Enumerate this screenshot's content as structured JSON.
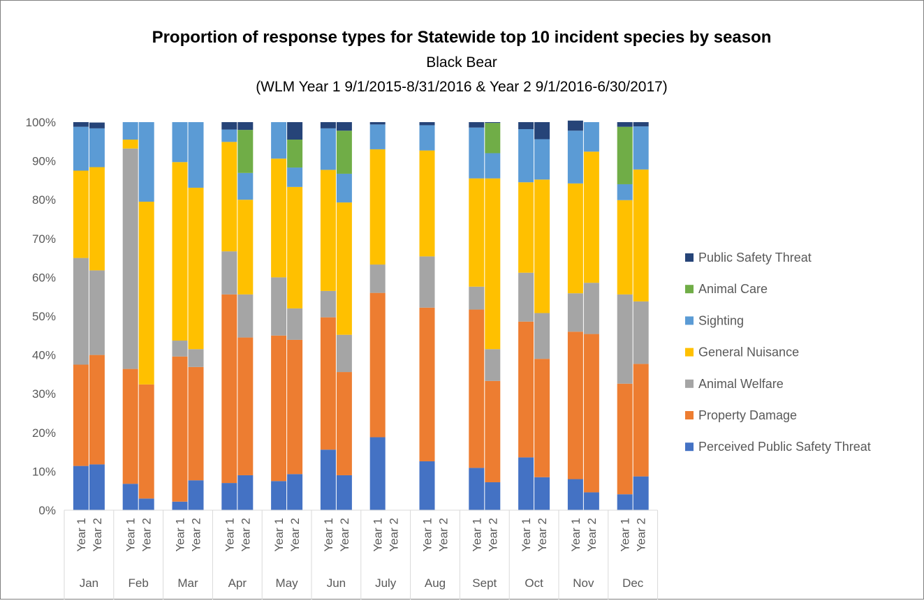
{
  "chart_data": {
    "type": "bar",
    "stacked": true,
    "normalized": true,
    "title": "Proportion of response types for Statewide top 10 incident species by season",
    "subtitle": "Black Bear",
    "subtitle2": "(WLM Year 1 9/1/2015-8/31/2016 & Year 2 9/1/2016-6/30/2017)",
    "xlabel": "",
    "ylabel": "",
    "ylim": [
      0,
      100
    ],
    "yticks": [
      "0%",
      "10%",
      "20%",
      "30%",
      "40%",
      "50%",
      "60%",
      "70%",
      "80%",
      "90%",
      "100%"
    ],
    "legend_position": "right",
    "grid": false,
    "groups": [
      "Jan",
      "Feb",
      "Mar",
      "Apr",
      "May",
      "Jun",
      "July",
      "Aug",
      "Sept",
      "Oct",
      "Nov",
      "Dec"
    ],
    "subcategories": [
      "Year 1",
      "Year 2"
    ],
    "series": [
      {
        "name": "Perceived Public Safety Threat",
        "color": "#4472C4",
        "values": [
          [
            11.4,
            11.8
          ],
          [
            6.8,
            3.0
          ],
          [
            2.2,
            7.7
          ],
          [
            7.0,
            9.0
          ],
          [
            7.5,
            9.3
          ],
          [
            15.6,
            9.0
          ],
          [
            18.8,
            null
          ],
          [
            12.6,
            null
          ],
          [
            10.9,
            7.2
          ],
          [
            13.6,
            8.5
          ],
          [
            8.0,
            4.6
          ],
          [
            4.1,
            8.7
          ]
        ]
      },
      {
        "name": "Property Damage",
        "color": "#ED7D31",
        "values": [
          [
            26.1,
            28.2
          ],
          [
            29.6,
            29.4
          ],
          [
            37.4,
            29.2
          ],
          [
            48.6,
            35.5
          ],
          [
            37.5,
            34.6
          ],
          [
            34.1,
            26.6
          ],
          [
            37.2,
            null
          ],
          [
            39.6,
            null
          ],
          [
            40.8,
            26.1
          ],
          [
            35.0,
            30.5
          ],
          [
            38.0,
            40.8
          ],
          [
            28.5,
            29.0
          ]
        ]
      },
      {
        "name": "Animal Welfare",
        "color": "#A5A5A5",
        "values": [
          [
            27.5,
            21.8
          ],
          [
            56.8,
            0.0
          ],
          [
            4.1,
            4.6
          ],
          [
            11.1,
            11.1
          ],
          [
            15.0,
            8.1
          ],
          [
            6.8,
            9.6
          ],
          [
            7.3,
            null
          ],
          [
            13.2,
            null
          ],
          [
            5.9,
            8.2
          ],
          [
            12.6,
            11.8
          ],
          [
            9.9,
            13.2
          ],
          [
            23.0,
            16.1
          ]
        ]
      },
      {
        "name": "General Nuisance",
        "color": "#FFC000",
        "values": [
          [
            22.5,
            26.6
          ],
          [
            2.3,
            47.1
          ],
          [
            46.0,
            41.6
          ],
          [
            28.2,
            24.4
          ],
          [
            30.6,
            31.3
          ],
          [
            31.2,
            34.1
          ],
          [
            29.7,
            null
          ],
          [
            27.3,
            null
          ],
          [
            27.9,
            44.0
          ],
          [
            23.3,
            34.4
          ],
          [
            28.3,
            33.8
          ],
          [
            24.3,
            34.0
          ]
        ]
      },
      {
        "name": "Sighting",
        "color": "#5B9BD5",
        "values": [
          [
            11.3,
            10.0
          ],
          [
            4.5,
            20.5
          ],
          [
            10.3,
            16.9
          ],
          [
            3.2,
            6.9
          ],
          [
            9.4,
            5.0
          ],
          [
            10.7,
            7.4
          ],
          [
            6.4,
            null
          ],
          [
            6.5,
            null
          ],
          [
            13.1,
            6.5
          ],
          [
            13.7,
            10.4
          ],
          [
            13.6,
            7.6
          ],
          [
            4.1,
            11.1
          ]
        ]
      },
      {
        "name": "Animal Care",
        "color": "#70AD47",
        "values": [
          [
            0,
            0
          ],
          [
            0,
            0
          ],
          [
            0,
            0
          ],
          [
            0,
            11.1
          ],
          [
            0,
            7.2
          ],
          [
            0,
            11.1
          ],
          [
            0,
            null
          ],
          [
            0,
            null
          ],
          [
            0,
            7.8
          ],
          [
            0,
            0
          ],
          [
            0,
            0
          ],
          [
            14.8,
            0
          ]
        ]
      },
      {
        "name": "Public Safety Threat",
        "color": "#264478",
        "values": [
          [
            1.2,
            1.5
          ],
          [
            0,
            0
          ],
          [
            0,
            0
          ],
          [
            1.9,
            2.0
          ],
          [
            0,
            4.5
          ],
          [
            1.6,
            2.2
          ],
          [
            0.6,
            null
          ],
          [
            0.8,
            null
          ],
          [
            1.4,
            0.2
          ],
          [
            1.8,
            4.4
          ],
          [
            2.6,
            0
          ],
          [
            1.2,
            1.1
          ]
        ]
      }
    ]
  },
  "colors": {
    "frame_border": "#7F7F7F",
    "axis_line": "#D9D9D9",
    "text": "#000000",
    "tick_text": "#595959"
  }
}
